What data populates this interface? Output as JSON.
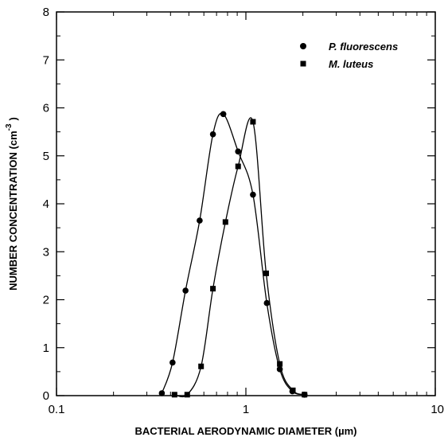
{
  "chart_data": {
    "type": "scatter",
    "title": "",
    "xlabel": "BACTERIAL AERODYNAMIC DIAMETER (µm)",
    "ylabel": "NUMBER CONCENTRATION (cm",
    "ylabel_superscript": "-3",
    "ylabel_close": ")",
    "xscale": "log",
    "xlim": [
      0.1,
      10
    ],
    "ylim": [
      0,
      8
    ],
    "x_tick_values": [
      0.1,
      1,
      10
    ],
    "x_tick_labels": [
      "0.1",
      "1",
      "10"
    ],
    "y_tick_values": [
      0,
      1,
      2,
      3,
      4,
      5,
      6,
      7,
      8
    ],
    "y_tick_labels": [
      "0",
      "1",
      "2",
      "3",
      "4",
      "5",
      "6",
      "7",
      "8"
    ],
    "grid": false,
    "legend_position": "top-right",
    "series": [
      {
        "name": "P. fluorescens",
        "marker": "circle",
        "color": "#000000",
        "x": [
          0.36,
          0.41,
          0.48,
          0.57,
          0.67,
          0.76,
          0.91,
          1.09,
          1.29,
          1.51,
          1.76,
          2.04
        ],
        "y": [
          0.05,
          0.69,
          2.19,
          3.65,
          5.45,
          5.87,
          5.09,
          4.19,
          1.93,
          0.55,
          0.09,
          0.02
        ]
      },
      {
        "name": "M. luteus",
        "marker": "square",
        "color": "#000000",
        "x": [
          0.42,
          0.49,
          0.58,
          0.67,
          0.78,
          0.91,
          1.09,
          1.28,
          1.51,
          1.77,
          2.04
        ],
        "y": [
          0.02,
          0.02,
          0.61,
          2.23,
          3.62,
          4.78,
          5.71,
          2.55,
          0.66,
          0.11,
          0.02
        ]
      }
    ]
  }
}
